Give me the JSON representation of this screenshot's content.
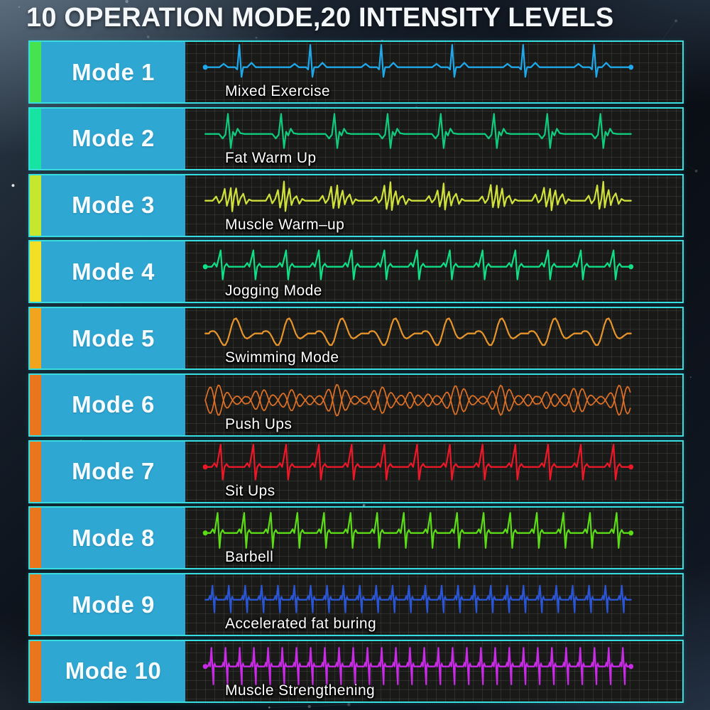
{
  "title": "10 OPERATION MODE,20 INTENSITY LEVELS",
  "theme": {
    "row_border_color": "#38dde0",
    "mode_box_color": "#2fa7d3",
    "panel_bg_color": "#191918",
    "panel_grid_color": "#2d2d2c",
    "title_color": "#f4f7f9",
    "background_color": "#0c1118"
  },
  "modes": [
    {
      "label": "Mode 1",
      "description": "Mixed Exercise",
      "accent_color": "#46e24f",
      "wave_color": "#1fa9ea",
      "wave": {
        "pattern": "ecg-classic",
        "beats": 6,
        "up": 30,
        "down": 13,
        "end_dots": true
      }
    },
    {
      "label": "Mode 2",
      "description": "Fat Warm Up",
      "accent_color": "#17e3a2",
      "wave_color": "#10cb7d",
      "wave": {
        "pattern": "ecg-warm",
        "beats": 8,
        "up": 27,
        "down": 19,
        "end_dots": false
      }
    },
    {
      "label": "Mode 3",
      "description": "Muscle Warm–up",
      "accent_color": "#c6e72e",
      "wave_color": "#cfe03a",
      "wave": {
        "pattern": "ecg-noisy",
        "beats": 8,
        "up": 21,
        "down": 14,
        "end_dots": false
      }
    },
    {
      "label": "Mode 4",
      "description": "Jogging Mode",
      "accent_color": "#f3e026",
      "wave_color": "#10df85",
      "wave": {
        "pattern": "ecg-spike",
        "beats": 13,
        "up": 22,
        "down": 17,
        "end_dots": true
      }
    },
    {
      "label": "Mode 5",
      "description": "Swimming Mode",
      "accent_color": "#f2a41e",
      "wave_color": "#e6952c",
      "wave": {
        "pattern": "wavelet",
        "beats": 8,
        "up": 22,
        "down": 22,
        "end_dots": false
      }
    },
    {
      "label": "Mode 6",
      "description": "Push Ups",
      "accent_color": "#e9751c",
      "wave_color": "#de7026",
      "wave": {
        "pattern": "spindle",
        "beats": 30,
        "up": 21,
        "down": 21,
        "end_dots": false
      }
    },
    {
      "label": "Mode 7",
      "description": "Sit Ups",
      "accent_color": "#e9751c",
      "wave_color": "#ec1828",
      "wave": {
        "pattern": "ecg-spike",
        "beats": 13,
        "up": 30,
        "down": 17,
        "end_dots": true
      }
    },
    {
      "label": "Mode 8",
      "description": "Barbell",
      "accent_color": "#e9751c",
      "wave_color": "#5cdc16",
      "wave": {
        "pattern": "ecg-spike",
        "beats": 16,
        "up": 27,
        "down": 20,
        "end_dots": true
      }
    },
    {
      "label": "Mode 9",
      "description": "Accelerated fat buring",
      "accent_color": "#e9751c",
      "wave_color": "#2a55d4",
      "wave": {
        "pattern": "ecg-dense",
        "beats": 26,
        "up": 19,
        "down": 17,
        "end_dots": false
      }
    },
    {
      "label": "Mode 10",
      "description": "Muscle Strengthening",
      "accent_color": "#e9751c",
      "wave_color": "#c82ae6",
      "wave": {
        "pattern": "ecg-dense",
        "beats": 30,
        "up": 25,
        "down": 24,
        "end_dots": true
      }
    }
  ]
}
